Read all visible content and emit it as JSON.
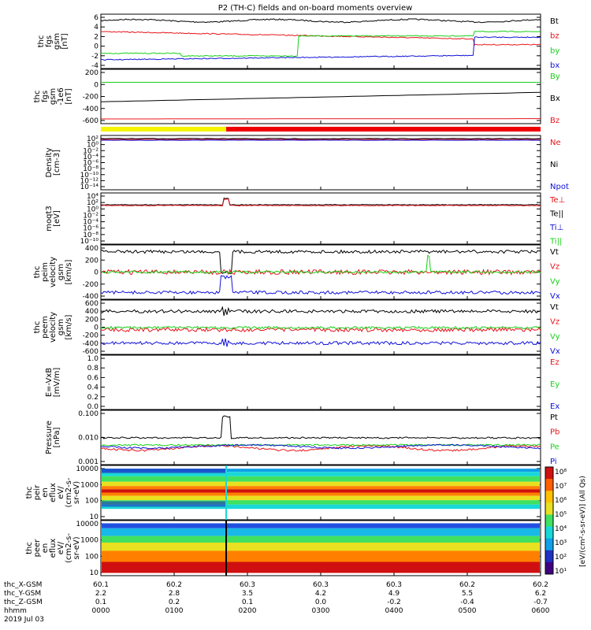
{
  "title": "P2 (TH-C) fields and on-board moments overview",
  "colors": {
    "black": "#000000",
    "red": "#e8141a",
    "green": "#18d018",
    "blue": "#1010d8",
    "yellow": "#f5f500",
    "flag_red": "#ee0000"
  },
  "chart_data": {
    "type": "line",
    "x": [
      "0000",
      "0100",
      "0200",
      "0300",
      "0400",
      "0500",
      "0600"
    ],
    "time_label": "hhmm",
    "date_label": "2019 Jul 03",
    "orbit_rows": [
      {
        "label": "thc_X-GSM",
        "values": [
          "60.1",
          "60.2",
          "60.3",
          "60.3",
          "60.3",
          "60.2",
          "60.2"
        ]
      },
      {
        "label": "thc_Y-GSM",
        "values": [
          "2.2",
          "2.8",
          "3.5",
          "4.2",
          "4.9",
          "5.5",
          "6.2"
        ]
      },
      {
        "label": "thc_Z-GSM",
        "values": [
          "0.1",
          "0.2",
          "0.1",
          "0.0",
          "-0.2",
          "-0.4",
          "-0.7"
        ]
      }
    ],
    "panels": [
      {
        "id": "fgs",
        "ylabel": [
          "thc",
          "fgs",
          "gsm",
          "[nT]"
        ],
        "ylim": [
          -6,
          6.5
        ],
        "ticks": [
          "6",
          "4",
          "2",
          "0",
          "-2",
          "-4"
        ],
        "series": [
          {
            "name": "Bt",
            "color": "#000000"
          },
          {
            "name": "bz",
            "color": "#e8141a"
          },
          {
            "name": "by",
            "color": "#18d018"
          },
          {
            "name": "bx",
            "color": "#1010d8"
          }
        ]
      },
      {
        "id": "pos",
        "ylabel": [
          "thc",
          "fgs",
          "gsm",
          "-1e6",
          "[nT]"
        ],
        "ylim": [
          -700,
          220
        ],
        "ticks": [
          "200",
          "0",
          "-200",
          "-400",
          "-600"
        ],
        "series": [
          {
            "name": "By",
            "color": "#18d018"
          },
          {
            "name": "Bx",
            "color": "#000000"
          },
          {
            "name": "Bz",
            "color": "#e8141a"
          }
        ]
      },
      {
        "id": "density",
        "ylabel": [
          "Density",
          "[cm-3]"
        ],
        "ticks": [
          "10²",
          "10⁰",
          "10⁻²",
          "10⁻⁴",
          "10⁻⁶",
          "10⁻⁸",
          "10⁻¹⁰",
          "10⁻¹²",
          "10⁻¹⁴"
        ],
        "series": [
          {
            "name": "Ne",
            "color": "#e8141a"
          },
          {
            "name": "Ni",
            "color": "#000000"
          },
          {
            "name": "Npot",
            "color": "#1010d8"
          }
        ]
      },
      {
        "id": "temp",
        "ylabel": [
          "moqt3",
          "[eV]"
        ],
        "ticks": [
          "10⁴",
          "10²",
          "10⁰",
          "10⁻²",
          "10⁻⁴",
          "10⁻⁶",
          "10⁻⁸",
          "10⁻¹⁰"
        ],
        "series": [
          {
            "name": "Te⊥",
            "color": "#e8141a"
          },
          {
            "name": "Te||",
            "color": "#000000"
          },
          {
            "name": "Ti⊥",
            "color": "#1010d8"
          },
          {
            "name": "Ti||",
            "color": "#18d018"
          }
        ]
      },
      {
        "id": "peim",
        "ylabel": [
          "thc",
          "peim",
          "velocity",
          "gsm",
          "[km/s]"
        ],
        "ylim": [
          -420,
          420
        ],
        "ticks": [
          "400",
          "200",
          "0",
          "-200",
          "-400"
        ],
        "series": [
          {
            "name": "Vt",
            "color": "#000000"
          },
          {
            "name": "Vz",
            "color": "#e8141a"
          },
          {
            "name": "Vy",
            "color": "#18d018"
          },
          {
            "name": "Vx",
            "color": "#1010d8"
          }
        ]
      },
      {
        "id": "peem",
        "ylabel": [
          "thc",
          "peem",
          "velocity",
          "gsm",
          "[km/s]"
        ],
        "ylim": [
          -650,
          650
        ],
        "ticks": [
          "600",
          "400",
          "200",
          "0",
          "-200",
          "-400",
          "-600"
        ],
        "series": [
          {
            "name": "Vt",
            "color": "#000000"
          },
          {
            "name": "Vz",
            "color": "#e8141a"
          },
          {
            "name": "Vy",
            "color": "#18d018"
          },
          {
            "name": "Vx",
            "color": "#1010d8"
          }
        ]
      },
      {
        "id": "efield",
        "ylabel": [
          "E=-VxB",
          "[mV/m]"
        ],
        "ylim": [
          0,
          1.0
        ],
        "ticks": [
          "1.0",
          "0.8",
          "0.6",
          "0.4",
          "0.2",
          "0.0"
        ],
        "series": [
          {
            "name": "Ez",
            "color": "#e8141a"
          },
          {
            "name": "Ey",
            "color": "#18d018"
          },
          {
            "name": "Ex",
            "color": "#1010d8"
          }
        ]
      },
      {
        "id": "pressure",
        "ylabel": [
          "Pressure",
          "[nPa]"
        ],
        "ticks": [
          "0.100",
          "0.010",
          "0.001"
        ],
        "series": [
          {
            "name": "Pt",
            "color": "#000000"
          },
          {
            "name": "Pb",
            "color": "#e8141a"
          },
          {
            "name": "Pe",
            "color": "#18d018"
          },
          {
            "name": "Pi",
            "color": "#1010d8"
          }
        ]
      },
      {
        "id": "peir",
        "ylabel": [
          "thc",
          "peir",
          "en",
          "eflux",
          "eV/",
          "(cm2-s-",
          "sr-eV)"
        ],
        "ticks": [
          "10000",
          "1000",
          "100",
          "10"
        ]
      },
      {
        "id": "peer",
        "ylabel": [
          "thc",
          "peer",
          "en",
          "eflux",
          "eV/",
          "(cm2-s-",
          "sr-eV)"
        ],
        "ticks": [
          "10000",
          "1000",
          "100",
          "10"
        ]
      }
    ],
    "colorbar": {
      "label": "[eV/(cm²-s-sr-eV)] (All Qs)",
      "ticks": [
        "10⁸",
        "10⁷",
        "10⁶",
        "10⁵",
        "10⁴",
        "10³",
        "10²",
        "10¹"
      ]
    }
  }
}
